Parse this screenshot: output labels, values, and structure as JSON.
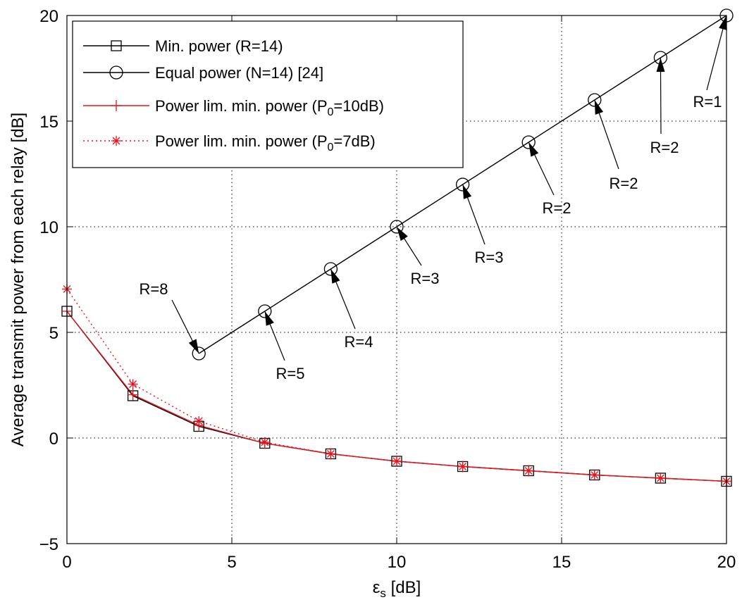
{
  "chart_data": {
    "type": "line",
    "xlabel": "ε",
    "xlabel_sub": "s",
    "xlabel_unit": " [dB]",
    "ylabel": "Average transmit power from each relay [dB]",
    "xlim": [
      0,
      20
    ],
    "ylim": [
      -5,
      20
    ],
    "xticks": [
      0,
      5,
      10,
      15,
      20
    ],
    "yticks": [
      -5,
      0,
      5,
      10,
      15,
      20
    ],
    "xtick_labels": [
      "0",
      "5",
      "10",
      "15",
      "20"
    ],
    "ytick_labels": [
      "−5",
      "0",
      "5",
      "10",
      "15",
      "20"
    ],
    "grid": true,
    "legend_position": "top-left",
    "series": [
      {
        "name": "Min. power (R=14)",
        "color": "#000000",
        "line": "solid",
        "marker": "square",
        "x": [
          0,
          2,
          4,
          6,
          8,
          10,
          12,
          14,
          16,
          18,
          20
        ],
        "y": [
          6.0,
          2.0,
          0.55,
          -0.25,
          -0.75,
          -1.1,
          -1.35,
          -1.55,
          -1.75,
          -1.9,
          -2.05
        ]
      },
      {
        "name": "Equal power (N=14) [24]",
        "color": "#000000",
        "line": "solid",
        "marker": "circle",
        "x": [
          4,
          6,
          8,
          10,
          12,
          14,
          16,
          18,
          20
        ],
        "y": [
          4,
          6,
          8,
          10,
          12,
          14,
          16,
          18,
          20
        ]
      },
      {
        "name": "Power lim. min. power (P",
        "name_sub": "0",
        "name_tail": "=10dB)",
        "color": "#e8141c",
        "line": "solid",
        "marker": "plus",
        "x": [
          0,
          2,
          4,
          6,
          8,
          10,
          12,
          14,
          16,
          18,
          20
        ],
        "y": [
          6.0,
          2.05,
          0.6,
          -0.25,
          -0.75,
          -1.1,
          -1.35,
          -1.55,
          -1.75,
          -1.9,
          -2.05
        ]
      },
      {
        "name": "Power lim. min. power (P",
        "name_sub": "0",
        "name_tail": "=7dB)",
        "color": "#e8141c",
        "line": "dotted",
        "marker": "asterisk",
        "x": [
          0,
          2,
          4,
          6,
          8,
          10,
          12,
          14,
          16,
          18,
          20
        ],
        "y": [
          7.05,
          2.55,
          0.8,
          -0.2,
          -0.75,
          -1.1,
          -1.35,
          -1.55,
          -1.75,
          -1.9,
          -2.05
        ]
      }
    ],
    "annotations": [
      {
        "text": "R=8",
        "point": [
          4,
          4
        ]
      },
      {
        "text": "R=5",
        "point": [
          6,
          6
        ]
      },
      {
        "text": "R=4",
        "point": [
          8,
          8
        ]
      },
      {
        "text": "R=3",
        "point": [
          10,
          10
        ]
      },
      {
        "text": "R=3",
        "point": [
          12,
          12
        ]
      },
      {
        "text": "R=2",
        "point": [
          14,
          14
        ]
      },
      {
        "text": "R=2",
        "point": [
          16,
          16
        ]
      },
      {
        "text": "R=2",
        "point": [
          18,
          18
        ]
      },
      {
        "text": "R=1",
        "point": [
          20,
          20
        ]
      }
    ]
  }
}
